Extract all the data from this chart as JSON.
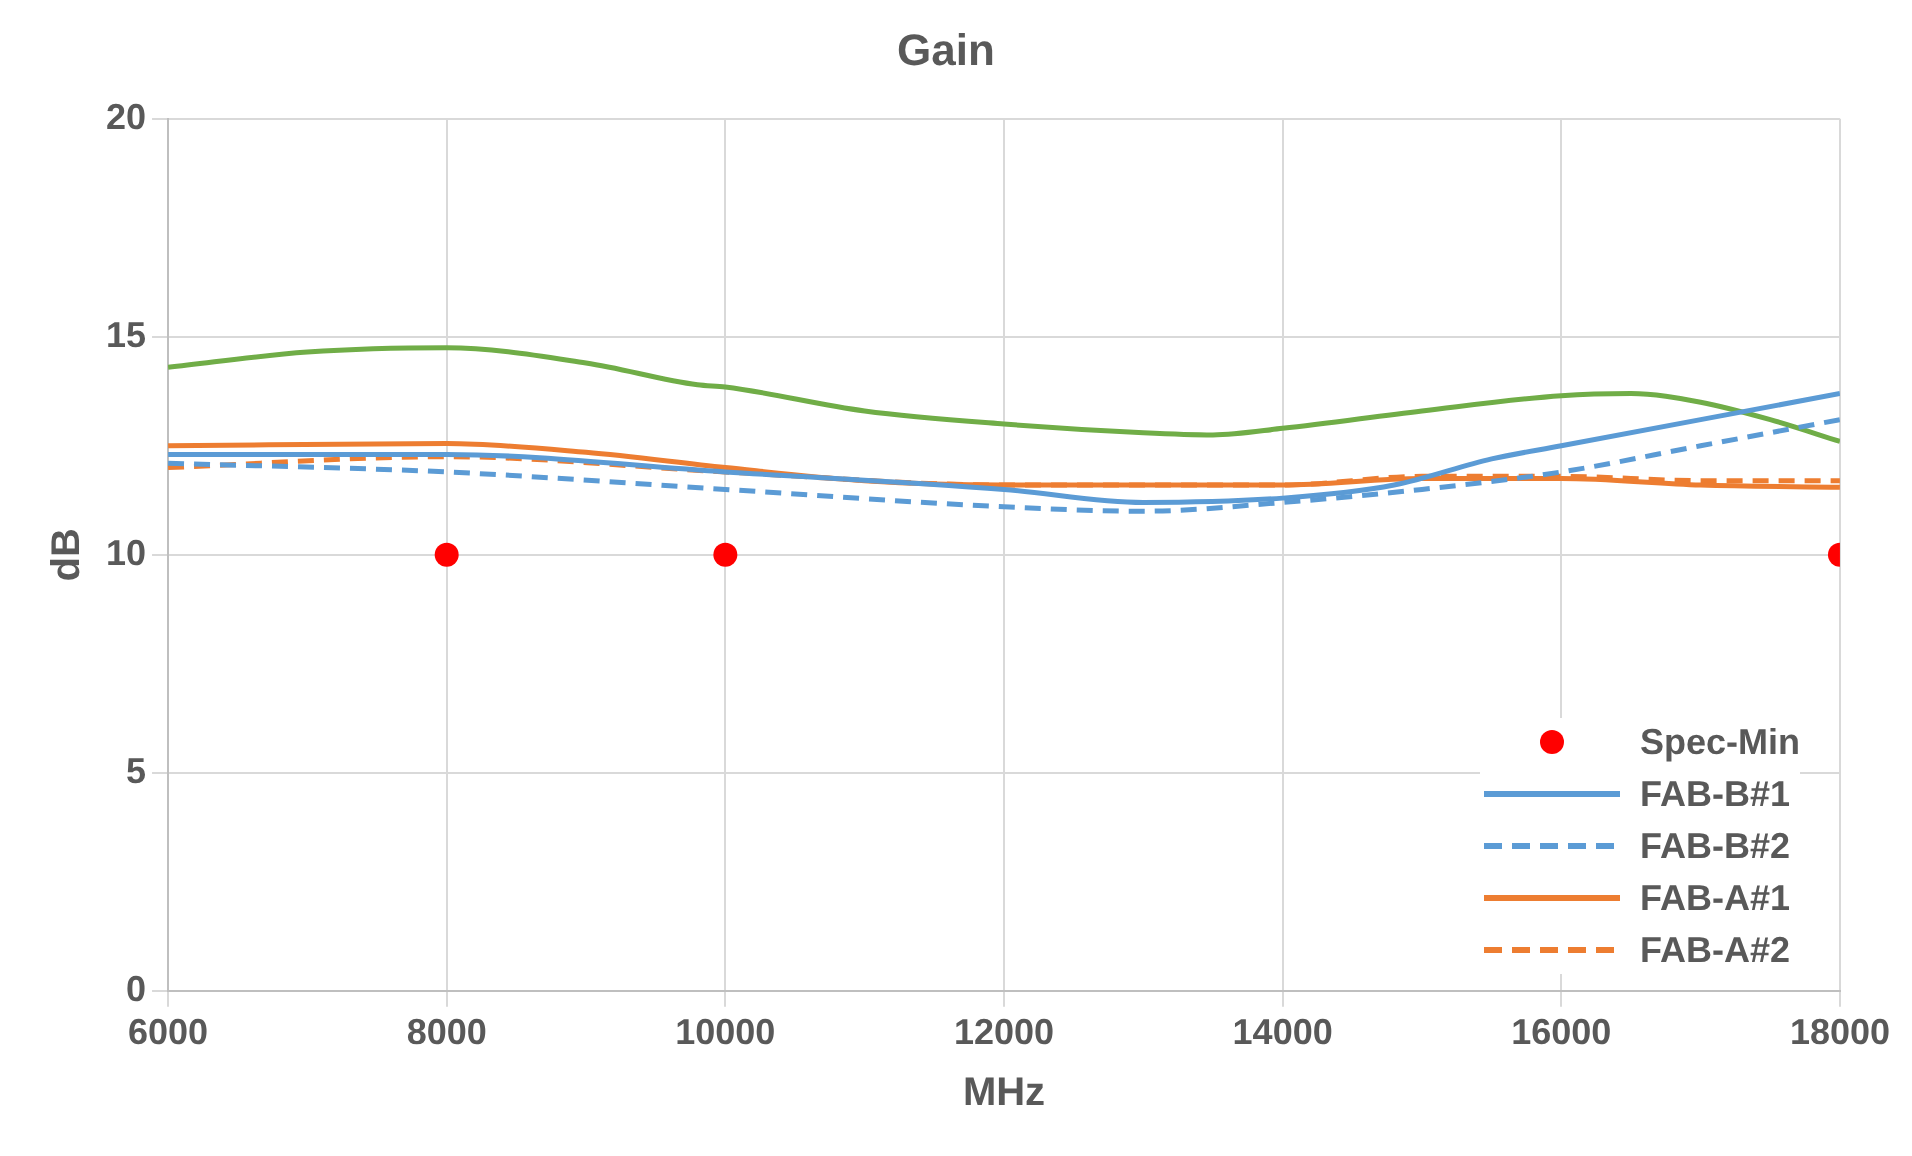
{
  "chart_data": {
    "type": "line",
    "title": "Gain",
    "xlabel": "MHz",
    "ylabel": "dB",
    "xlim": [
      6000,
      18000
    ],
    "xticks": [
      6000,
      8000,
      10000,
      12000,
      14000,
      16000,
      18000
    ],
    "ylim": [
      0,
      20
    ],
    "yticks": [
      0,
      5,
      10,
      15,
      20
    ],
    "grid": true,
    "legend": "bottom right",
    "marker": "none",
    "series": [
      {
        "name": "Spec-Min",
        "type": "scatter",
        "marker": "circle",
        "color": "#ff0000",
        "x": [
          8000,
          10000,
          18000
        ],
        "values": [
          10,
          10,
          10
        ]
      },
      {
        "name": "FAB-B#1",
        "color": "#5b9bd5",
        "line_style": "solid",
        "x": [
          6000,
          8000,
          10000,
          12000,
          13000,
          14000,
          14800,
          15500,
          16000,
          17000,
          18000
        ],
        "values": [
          12.3,
          12.3,
          11.9,
          11.5,
          11.2,
          11.3,
          11.6,
          12.2,
          12.5,
          13.1,
          13.7
        ]
      },
      {
        "name": "FAB-B#2",
        "color": "#5b9bd5",
        "line_style": "dashed",
        "x": [
          6000,
          8000,
          10000,
          12000,
          13000,
          14000,
          15000,
          16000,
          17000,
          18000
        ],
        "values": [
          12.1,
          11.9,
          11.5,
          11.1,
          11.0,
          11.2,
          11.5,
          11.9,
          12.5,
          13.1
        ]
      },
      {
        "name": "FAB-A#1",
        "color": "#ed7d31",
        "line_style": "solid",
        "x": [
          6000,
          8000,
          9000,
          10000,
          11000,
          12000,
          14000,
          15000,
          16000,
          17000,
          18000
        ],
        "values": [
          12.5,
          12.55,
          12.35,
          12.0,
          11.7,
          11.6,
          11.6,
          11.75,
          11.75,
          11.6,
          11.55
        ]
      },
      {
        "name": "FAB-A#2",
        "color": "#ed7d31",
        "line_style": "dashed",
        "x": [
          6000,
          8000,
          10000,
          12000,
          14000,
          15000,
          16000,
          17000,
          18000
        ],
        "values": [
          12.0,
          12.25,
          11.9,
          11.6,
          11.6,
          11.8,
          11.8,
          11.7,
          11.7
        ]
      },
      {
        "color": "#70ad47",
        "line_style": "solid",
        "x": [
          6000,
          7000,
          8000,
          9000,
          9800,
          10000,
          11000,
          12000,
          13000,
          13500,
          14000,
          15000,
          16000,
          16500,
          17000,
          17500,
          18000
        ],
        "values": [
          14.3,
          14.65,
          14.75,
          14.4,
          13.9,
          13.85,
          13.3,
          13.0,
          12.8,
          12.75,
          12.9,
          13.3,
          13.65,
          13.7,
          13.5,
          13.1,
          12.6
        ]
      }
    ]
  }
}
